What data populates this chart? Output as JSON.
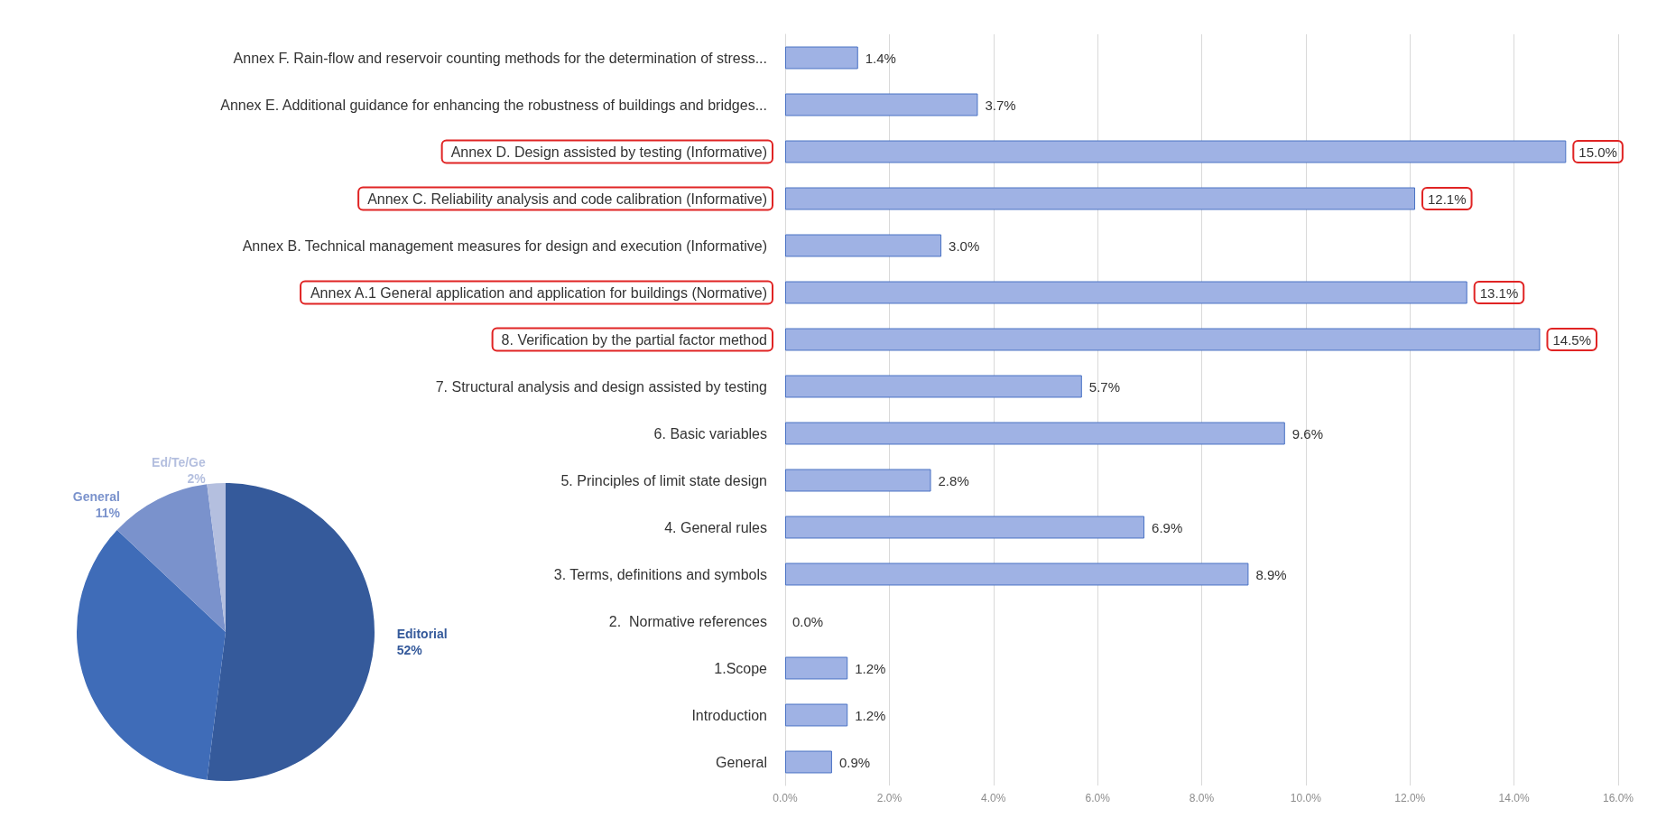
{
  "chart_data": [
    {
      "type": "bar",
      "orientation": "horizontal",
      "categories": [
        "Annex F. Rain-flow and reservoir counting methods for the determination of stress...",
        "Annex E. Additional guidance for enhancing the robustness of buildings and bridges...",
        "Annex D. Design assisted by testing (Informative)",
        "Annex C. Reliability analysis and code calibration (Informative)",
        "Annex B. Technical management measures for design and execution (Informative)",
        "Annex A.1 General application and application for buildings (Normative)",
        "8. Verification by the partial factor method",
        "7. Structural analysis and design assisted by testing",
        "6. Basic variables",
        "5. Principles of limit state design",
        "4. General rules",
        "3. Terms, definitions and symbols",
        "2.  Normative references",
        "1.Scope",
        "Introduction",
        "General"
      ],
      "values": [
        1.4,
        3.7,
        15.0,
        12.1,
        3.0,
        13.1,
        14.5,
        5.7,
        9.6,
        2.8,
        6.9,
        8.9,
        0.0,
        1.2,
        1.2,
        0.9
      ],
      "value_labels": [
        "1.4%",
        "3.7%",
        "15.0%",
        "12.1%",
        "3.0%",
        "13.1%",
        "14.5%",
        "5.7%",
        "9.6%",
        "2.8%",
        "6.9%",
        "8.9%",
        "0.0%",
        "1.2%",
        "1.2%",
        "0.9%"
      ],
      "color": "#9fb2e4",
      "xlim": [
        0,
        16
      ],
      "xticks": [
        {
          "value": 0,
          "label": "0.0%"
        },
        {
          "value": 2,
          "label": "2.0%"
        },
        {
          "value": 4,
          "label": "4.0%"
        },
        {
          "value": 6,
          "label": "6.0%"
        },
        {
          "value": 8,
          "label": "8.0%"
        },
        {
          "value": 10,
          "label": "10.0%"
        },
        {
          "value": 12,
          "label": "12.0%"
        },
        {
          "value": 14,
          "label": "14.0%"
        },
        {
          "value": 16,
          "label": "16.0%"
        }
      ],
      "grid": "x"
    },
    {
      "type": "pie",
      "categories": [
        "Editorial",
        null,
        "General",
        "Ed/Te/Ge"
      ],
      "values": [
        52,
        35,
        11,
        2
      ],
      "value_labels": [
        "52%",
        null,
        "11%",
        "2%"
      ],
      "colors": [
        "#355a9b",
        "#3f6cb8",
        "#7a92cc",
        "#b4bfdf"
      ]
    }
  ]
}
